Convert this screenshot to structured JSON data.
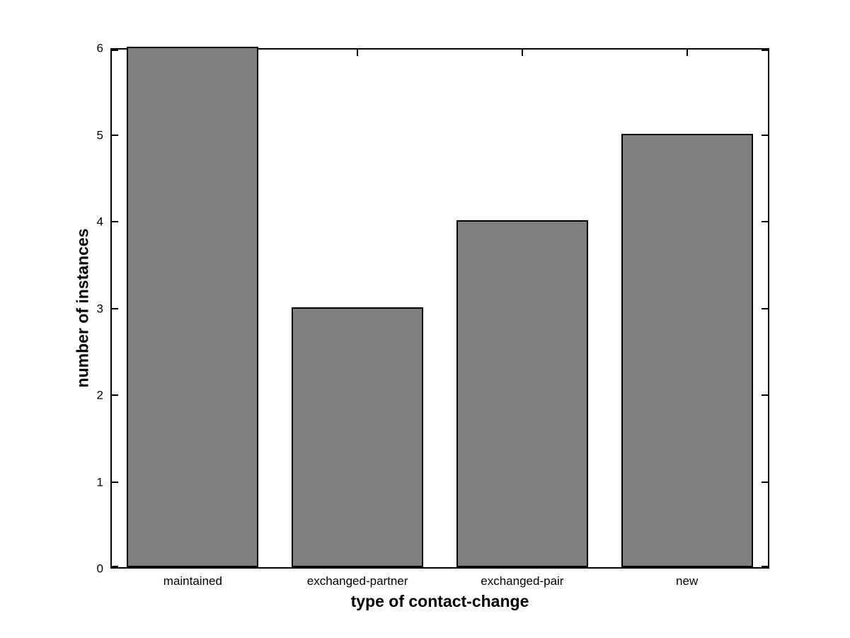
{
  "chart_data": {
    "type": "bar",
    "title": "",
    "categories": [
      "maintained",
      "exchanged-partner",
      "exchanged-pair",
      "new"
    ],
    "values": [
      6,
      3,
      4,
      5
    ],
    "xlabel": "type of contact-change",
    "ylabel": "number of instances",
    "ylim": [
      0,
      6
    ],
    "yticks": [
      0,
      1,
      2,
      3,
      4,
      5,
      6
    ],
    "grid": false,
    "legend": null,
    "bar_width_fraction": 0.8,
    "bar_color": "#808080",
    "bar_edge_color": "#000000",
    "axis_color": "#000000",
    "background_color": "#ffffff"
  }
}
